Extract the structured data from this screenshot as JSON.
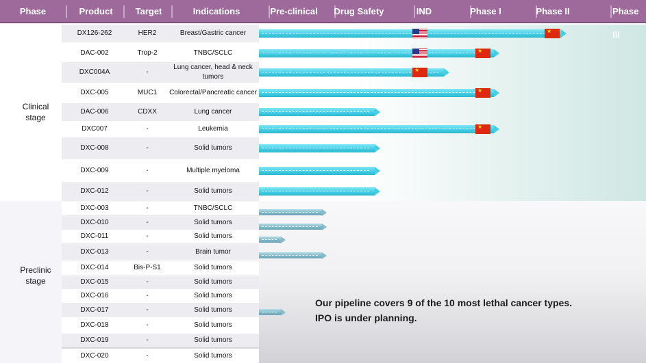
{
  "header": {
    "phase": "Phase",
    "product": "Product",
    "target": "Target",
    "indications": "Indications",
    "preclinical": "Pre-clinical",
    "drug_safety": "Drug Safety",
    "ind": "IND",
    "phase1": "Phase I",
    "phase2": "Phase II",
    "phase3": "Phase III"
  },
  "stages": {
    "clinical": [
      "Clinical",
      "stage"
    ],
    "preclinic": [
      "Preclinic",
      "stage"
    ]
  },
  "clinical_rows": [
    {
      "product": "DX126-262",
      "target": "HER2",
      "indication": "Breast/Gastric cancer",
      "progress": "Phase II",
      "flags": [
        "us-flag",
        "china-flag"
      ]
    },
    {
      "product": "DAC-002",
      "target": "Trop-2",
      "indication": "TNBC/SCLC",
      "progress": "Phase I",
      "flags": [
        "us-flag",
        "china-flag"
      ]
    },
    {
      "product": "DXC004A",
      "target": "-",
      "indication": "Lung cancer, head & neck tumors",
      "progress": "IND",
      "flags": [
        "china-flag"
      ]
    },
    {
      "product": "DXC-005",
      "target": "MUC1",
      "indication": "Colorectal/Pancreatic cancer",
      "progress": "Phase I",
      "flags": [
        "china-flag"
      ]
    },
    {
      "product": "DAC-006",
      "target": "CDXX",
      "indication": "Lung cancer",
      "progress": "Drug Safety",
      "flags": []
    },
    {
      "product": "DXC007",
      "target": "-",
      "indication": "Leukemia",
      "progress": "Phase I",
      "flags": [
        "china-flag"
      ]
    },
    {
      "product": "DXC-008",
      "target": "-",
      "indication": "Solid tumors",
      "progress": "Drug Safety",
      "flags": []
    },
    {
      "product": "DXC-009",
      "target": "-",
      "indication": "Multiple myeloma",
      "progress": "Drug Safety",
      "flags": []
    },
    {
      "product": "DXC-012",
      "target": "-",
      "indication": "Solid tumors",
      "progress": "Drug Safety",
      "flags": []
    }
  ],
  "preclinic_rows": [
    {
      "product": "DXC-003",
      "target": "-",
      "indication": "TNBC/SCLC"
    },
    {
      "product": "DXC-010",
      "target": "-",
      "indication": "Solid tumors"
    },
    {
      "product": "DXC-011",
      "target": "-",
      "indication": "Solid tumors"
    },
    {
      "product": "DXC-013",
      "target": "-",
      "indication": "Brain tumor"
    },
    {
      "product": "DXC-014",
      "target": "Bis-P-S1",
      "indication": "Solid tumors"
    },
    {
      "product": "DXC-015",
      "target": "-",
      "indication": "Solid tumors"
    },
    {
      "product": "DXC-016",
      "target": "-",
      "indication": "Solid tumors"
    },
    {
      "product": "DXC-017",
      "target": "-",
      "indication": "Solid tumors"
    },
    {
      "product": "DXC-018",
      "target": "-",
      "indication": "Solid tumors"
    },
    {
      "product": "DXC-019",
      "target": "-",
      "indication": "Solid tumors"
    },
    {
      "product": "DXC-020",
      "target": "-",
      "indication": "Solid tumors"
    }
  ],
  "note": {
    "line1": "Our pipeline covers 9 of the 10 most lethal cancer types.",
    "line2": "IPO is under planning."
  },
  "colors": {
    "header_bg": "#9e6a9c",
    "clinical_bar": "#45cfe5",
    "preclinic_bar": "#7fb6c5",
    "china_flag": "#de2910",
    "us_flag_blue": "#2a3a8c"
  }
}
